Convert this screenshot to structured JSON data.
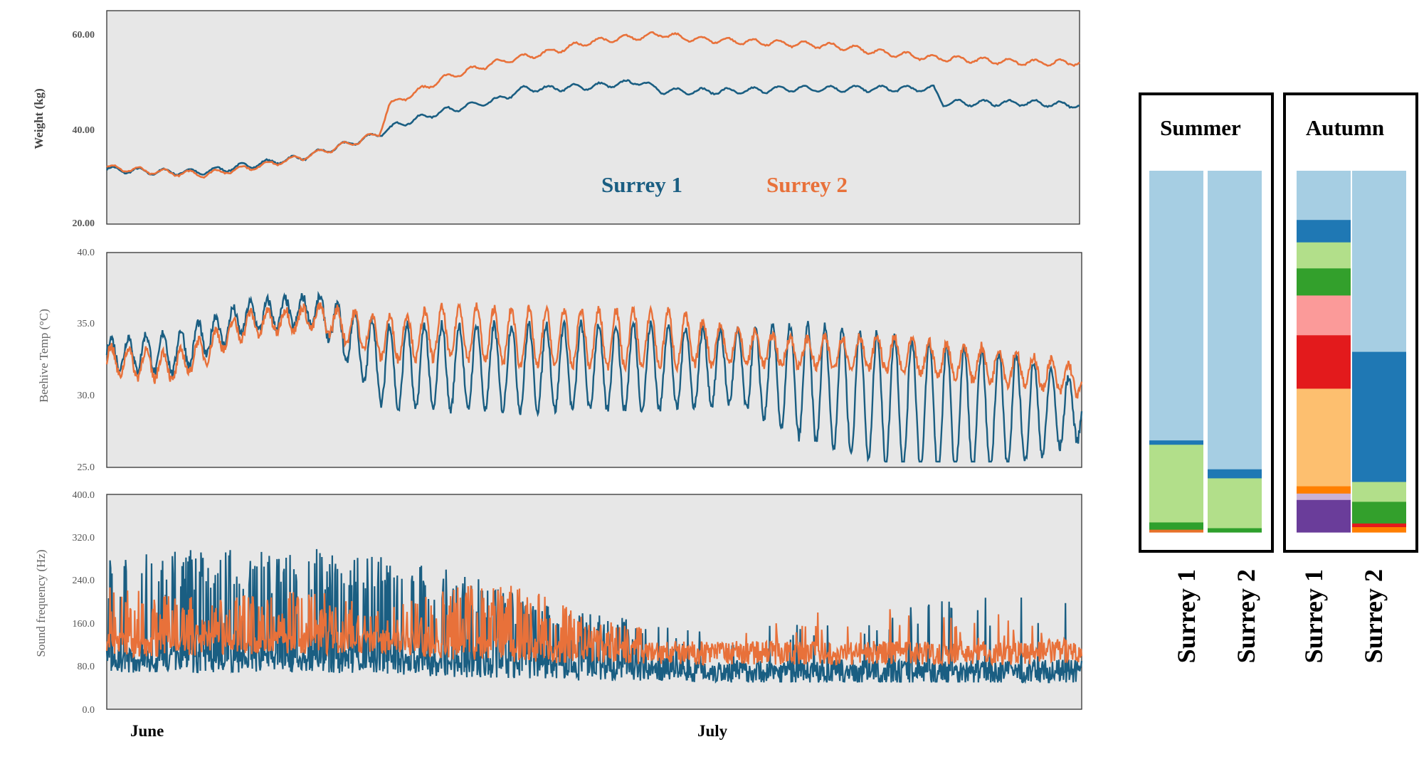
{
  "chart_data": [
    {
      "type": "line",
      "ylabel": "Weight (kg)",
      "yticks": [
        "60.00",
        "40.00",
        "20.00"
      ],
      "ylim": [
        20,
        65
      ],
      "xlabels": [
        "June",
        "July"
      ],
      "legend": [
        "Surrey 1",
        "Surrey 2"
      ],
      "series": [
        {
          "name": "Surrey 1",
          "color": "#1a5e82",
          "x": [
            0,
            0.05,
            0.1,
            0.15,
            0.2,
            0.25,
            0.28,
            0.3,
            0.35,
            0.4,
            0.43,
            0.45,
            0.5,
            0.55,
            0.57,
            0.6,
            0.65,
            0.7,
            0.75,
            0.8,
            0.85,
            0.86,
            0.9,
            0.95,
            1.0
          ],
          "values": [
            31.5,
            31,
            31,
            32.5,
            34,
            37,
            39,
            41,
            44,
            46,
            48.5,
            48.5,
            49,
            50,
            48,
            48,
            48,
            48.5,
            48.5,
            48.5,
            48.5,
            45.5,
            45.5,
            45.5,
            45
          ]
        },
        {
          "name": "Surrey 2",
          "color": "#e8713a",
          "x": [
            0,
            0.05,
            0.1,
            0.15,
            0.2,
            0.25,
            0.28,
            0.29,
            0.32,
            0.35,
            0.4,
            0.45,
            0.5,
            0.55,
            0.57,
            0.6,
            0.65,
            0.7,
            0.75,
            0.8,
            0.85,
            0.9,
            0.95,
            1.0
          ],
          "values": [
            32,
            31,
            30.5,
            32,
            34,
            37,
            39,
            45,
            48,
            51,
            54,
            56,
            58.5,
            59.5,
            60,
            59,
            58.5,
            58,
            57.5,
            56,
            55,
            54.5,
            54,
            54
          ]
        }
      ]
    },
    {
      "type": "line",
      "ylabel": "Beehive Temp (°C)",
      "yticks": [
        "40.0",
        "35.0",
        "30.0",
        "25.0"
      ],
      "ylim": [
        25,
        40
      ],
      "series": [
        {
          "name": "Surrey 1",
          "color": "#1a5e82",
          "base": [
            33,
            33,
            35.5,
            36,
            32,
            32,
            32,
            32,
            32,
            32,
            31,
            30,
            29,
            29,
            29
          ],
          "amp": [
            1,
            1.5,
            1,
            1,
            3,
            3,
            3,
            3,
            3,
            2.5,
            4,
            4.5,
            4.5,
            4,
            2
          ]
        },
        {
          "name": "Surrey 2",
          "color": "#e8713a",
          "base": [
            32.5,
            32,
            35,
            35.5,
            34,
            34.5,
            34,
            34,
            34,
            33.5,
            33,
            33,
            32.5,
            32,
            31
          ],
          "amp": [
            1,
            1,
            0.8,
            0.8,
            1.5,
            1.8,
            2,
            2,
            2,
            1.2,
            1,
            1.2,
            1.2,
            1.2,
            1
          ]
        }
      ]
    },
    {
      "type": "line",
      "ylabel": "Sound frequency (Hz)",
      "yticks": [
        "400.0",
        "320.0",
        "240.0",
        "160.0",
        "80.0",
        "0.0"
      ],
      "ylim": [
        0,
        400
      ],
      "series": [
        {
          "name": "Surrey 1",
          "color": "#1a5e82",
          "base": [
            90,
            90,
            90,
            90,
            85,
            80,
            80,
            75,
            75,
            70,
            70,
            70,
            70,
            70,
            70
          ],
          "spike": [
            270,
            280,
            290,
            285,
            270,
            250,
            200,
            170,
            150,
            140,
            160,
            180,
            200,
            200,
            200
          ]
        },
        {
          "name": "Surrey 2",
          "color": "#e8713a",
          "base": [
            120,
            120,
            125,
            125,
            125,
            115,
            110,
            105,
            105,
            105,
            105,
            105,
            105,
            105,
            110
          ],
          "spike": [
            220,
            200,
            210,
            210,
            180,
            220,
            220,
            160,
            140,
            150,
            170,
            190,
            180,
            170,
            150
          ]
        }
      ]
    },
    {
      "type": "bar",
      "stacked": true,
      "groups": [
        {
          "title": "Summer",
          "bars": [
            {
              "label": "Surrey 1",
              "segments": [
                {
                  "color": "#e8712a",
                  "value": 0.008
                },
                {
                  "color": "#2ea02c",
                  "value": 0.02
                },
                {
                  "color": "#b2df8a",
                  "value": 0.215
                },
                {
                  "color": "#1f78b4",
                  "value": 0.012
                },
                {
                  "color": "#a6cee3",
                  "value": 0.745
                }
              ]
            },
            {
              "label": "Surrey 2",
              "segments": [
                {
                  "color": "#2ea02c",
                  "value": 0.012
                },
                {
                  "color": "#b2df8a",
                  "value": 0.138
                },
                {
                  "color": "#1f78b4",
                  "value": 0.025
                },
                {
                  "color": "#a6cee3",
                  "value": 0.825
                }
              ]
            }
          ]
        },
        {
          "title": "Autumn",
          "bars": [
            {
              "label": "Surrey 1",
              "segments": [
                {
                  "color": "#6a3d9a",
                  "value": 0.09
                },
                {
                  "color": "#cab2d6",
                  "value": 0.018
                },
                {
                  "color": "#ff7f00",
                  "value": 0.02
                },
                {
                  "color": "#fdbf6f",
                  "value": 0.27
                },
                {
                  "color": "#e31a1c",
                  "value": 0.148
                },
                {
                  "color": "#fb9a99",
                  "value": 0.11
                },
                {
                  "color": "#33a02c",
                  "value": 0.075
                },
                {
                  "color": "#b2df8a",
                  "value": 0.072
                },
                {
                  "color": "#1f78b4",
                  "value": 0.062
                },
                {
                  "color": "#a6cee3",
                  "value": 0.135
                }
              ]
            },
            {
              "label": "Surrey 2",
              "segments": [
                {
                  "color": "#ff7f00",
                  "value": 0.015
                },
                {
                  "color": "#e31a1c",
                  "value": 0.01
                },
                {
                  "color": "#33a02c",
                  "value": 0.06
                },
                {
                  "color": "#b2df8a",
                  "value": 0.055
                },
                {
                  "color": "#1f78b4",
                  "value": 0.36
                },
                {
                  "color": "#a6cee3",
                  "value": 0.5
                }
              ]
            }
          ]
        }
      ]
    }
  ]
}
